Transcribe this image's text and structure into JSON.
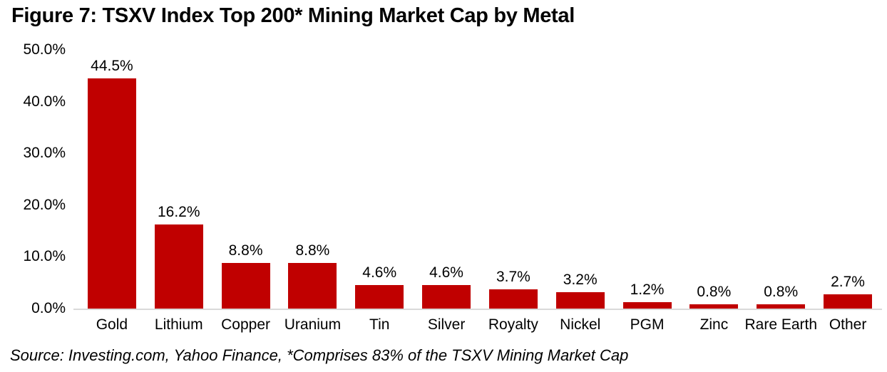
{
  "chart_data": {
    "type": "bar",
    "title": "Figure 7: TSXV Index Top 200* Mining Market Cap by Metal",
    "categories": [
      "Gold",
      "Lithium",
      "Copper",
      "Uranium",
      "Tin",
      "Silver",
      "Royalty",
      "Nickel",
      "PGM",
      "Zinc",
      "Rare Earth",
      "Other"
    ],
    "values": [
      44.5,
      16.2,
      8.8,
      8.8,
      4.6,
      4.6,
      3.7,
      3.2,
      1.2,
      0.8,
      0.8,
      2.7
    ],
    "value_labels": [
      "44.5%",
      "16.2%",
      "8.8%",
      "8.8%",
      "4.6%",
      "4.6%",
      "3.7%",
      "3.2%",
      "1.2%",
      "0.8%",
      "0.8%",
      "2.7%"
    ],
    "xlabel": "",
    "ylabel": "",
    "ylim": [
      0,
      50
    ],
    "ytick_labels": [
      "0.0%",
      "10.0%",
      "20.0%",
      "30.0%",
      "40.0%",
      "50.0%"
    ],
    "grid": false,
    "legend": false,
    "bar_color": "#c00000",
    "axis_line_color": "#d9d9d9",
    "source_note": "Source: Investing.com, Yahoo Finance, *Comprises 83% of the TSXV Mining Market Cap"
  }
}
